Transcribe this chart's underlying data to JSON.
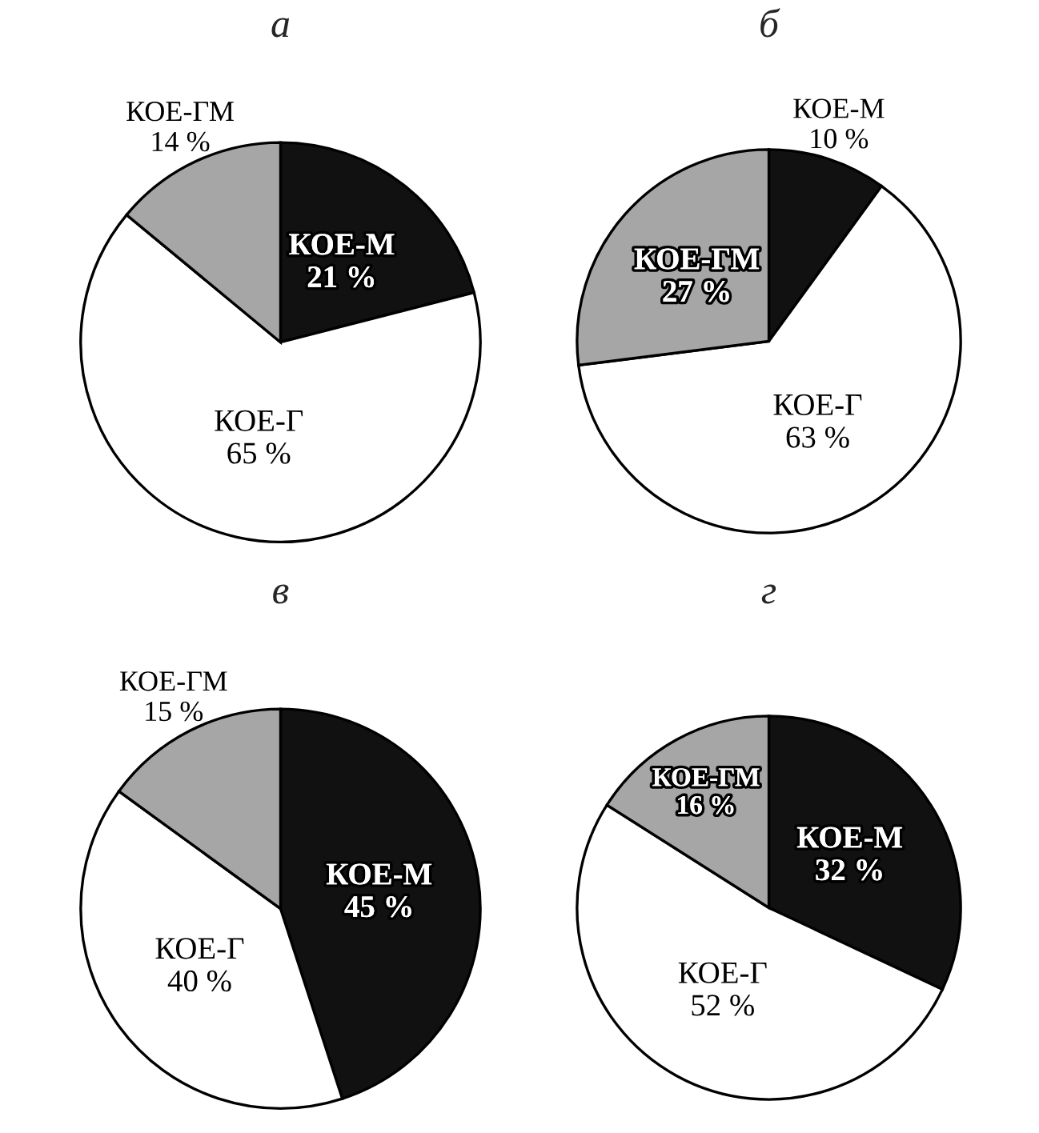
{
  "chart_data": [
    {
      "type": "pie",
      "title": "а",
      "categories": [
        "КОЕ-М",
        "КОЕ-Г",
        "КОЕ-ГМ"
      ],
      "values": [
        21,
        65,
        14
      ],
      "value_labels": [
        "21 %",
        "65 %",
        "14 %"
      ],
      "colors": [
        "#111111",
        "#ffffff",
        "#a6a6a6"
      ],
      "legend": false
    },
    {
      "type": "pie",
      "title": "б",
      "categories": [
        "КОЕ-М",
        "КОЕ-Г",
        "КОЕ-ГМ"
      ],
      "values": [
        10,
        63,
        27
      ],
      "value_labels": [
        "10 %",
        "63 %",
        "27 %"
      ],
      "colors": [
        "#111111",
        "#ffffff",
        "#a6a6a6"
      ],
      "legend": false
    },
    {
      "type": "pie",
      "title": "в",
      "categories": [
        "КОЕ-М",
        "КОЕ-Г",
        "КОЕ-ГМ"
      ],
      "values": [
        45,
        40,
        15
      ],
      "value_labels": [
        "45 %",
        "40 %",
        "15 %"
      ],
      "colors": [
        "#111111",
        "#ffffff",
        "#a6a6a6"
      ],
      "legend": false
    },
    {
      "type": "pie",
      "title": "г",
      "categories": [
        "КОЕ-М",
        "КОЕ-Г",
        "КОЕ-ГМ"
      ],
      "values": [
        32,
        52,
        16
      ],
      "value_labels": [
        "32 %",
        "52 %",
        "16 %"
      ],
      "colors": [
        "#111111",
        "#ffffff",
        "#a6a6a6"
      ],
      "legend": false
    }
  ]
}
